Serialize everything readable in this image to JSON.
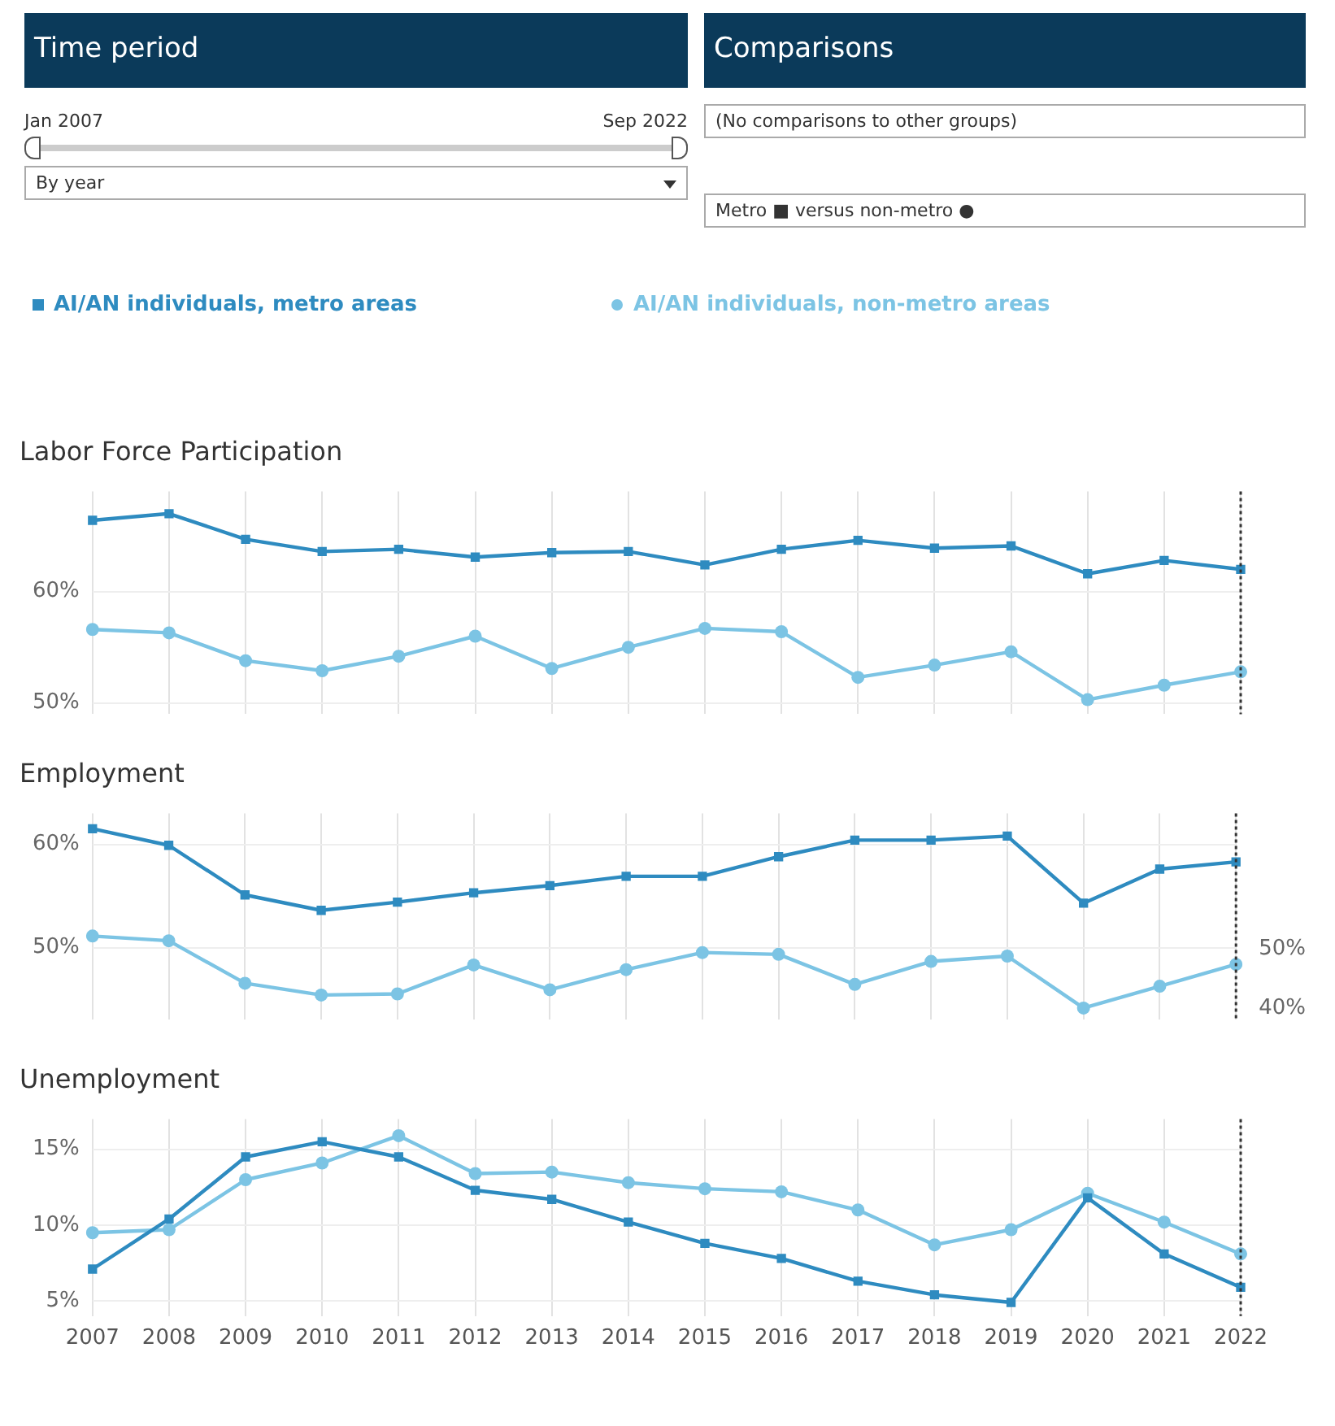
{
  "chart_data": [
    {
      "type": "other",
      "annotations": [
        "Time period",
        "Comparisons",
        "Jan 2007",
        "Sep 2022",
        "By year",
        "(No comparisons to other groups)",
        "Metro ■ versus non-metro ●"
      ]
    },
    {
      "type": "line",
      "title": "Labor Force Participation",
      "categories": [
        "2007",
        "2008",
        "2009",
        "2010",
        "2011",
        "2012",
        "2013",
        "2014",
        "2015",
        "2016",
        "2017",
        "2018",
        "2019",
        "2020",
        "2021",
        "2022"
      ],
      "series": [
        {
          "name": "AI/AN individuals, metro areas",
          "color": "#2e8bc0",
          "marker": "square",
          "values": [
            66.4,
            67.0,
            64.7,
            63.6,
            63.8,
            63.1,
            63.5,
            63.6,
            62.4,
            63.8,
            64.6,
            63.9,
            64.1,
            61.6,
            62.8,
            62.0
          ]
        },
        {
          "name": "AI/AN individuals, non-metro areas",
          "color": "#7cc4e4",
          "marker": "circle",
          "values": [
            56.6,
            56.3,
            53.8,
            52.9,
            54.2,
            56.0,
            53.1,
            55.0,
            56.7,
            56.4,
            52.3,
            53.4,
            54.6,
            50.3,
            51.6,
            52.8
          ]
        }
      ],
      "ylim": [
        49,
        69
      ],
      "yticks": [
        {
          "value": 50,
          "label": "50%"
        },
        {
          "value": 60,
          "label": "60%"
        }
      ],
      "grid": true,
      "legend": "top",
      "tick_labels": "y",
      "line_style": "solid",
      "ref_lines": [
        {
          "axis": "x",
          "value": "2022",
          "color": "#333333",
          "line_style": "dotted"
        }
      ]
    },
    {
      "type": "line",
      "title": "Employment",
      "categories": [
        "2007",
        "2008",
        "2009",
        "2010",
        "2011",
        "2012",
        "2013",
        "2014",
        "2015",
        "2016",
        "2017",
        "2018",
        "2019",
        "2020",
        "2021",
        "2022"
      ],
      "series": [
        {
          "color": "#2e8bc0",
          "marker": "square",
          "values": [
            61.5,
            59.9,
            55.1,
            53.6,
            54.4,
            55.3,
            56.0,
            56.9,
            56.9,
            58.8,
            60.4,
            60.4,
            60.8,
            54.3,
            57.6,
            58.3
          ]
        },
        {
          "color": "#7cc4e4",
          "marker": "circle",
          "axis": "y2",
          "values": [
            52.2,
            51.4,
            44.2,
            42.2,
            42.4,
            47.3,
            43.1,
            46.5,
            49.4,
            49.1,
            44.0,
            47.9,
            48.8,
            40.0,
            43.7,
            47.4
          ]
        }
      ],
      "ylim": [
        43,
        63
      ],
      "yticks": [
        {
          "value": 50,
          "label": "50%"
        },
        {
          "value": 60,
          "label": "60%"
        }
      ],
      "y2lim": [
        38,
        73
      ],
      "y2ticks": [
        {
          "value": 40,
          "label": "40%"
        },
        {
          "value": 50,
          "label": "50%"
        }
      ],
      "grid": true,
      "tick_labels": "y",
      "line_style": "solid",
      "ref_lines": [
        {
          "axis": "x",
          "value": "2022",
          "color": "#333333",
          "line_style": "dotted"
        }
      ]
    },
    {
      "type": "line",
      "title": "Unemployment",
      "categories": [
        "2007",
        "2008",
        "2009",
        "2010",
        "2011",
        "2012",
        "2013",
        "2014",
        "2015",
        "2016",
        "2017",
        "2018",
        "2019",
        "2020",
        "2021",
        "2022"
      ],
      "series": [
        {
          "color": "#2e8bc0",
          "marker": "square",
          "values": [
            7.1,
            10.4,
            14.5,
            15.5,
            14.5,
            12.3,
            11.7,
            10.2,
            8.8,
            7.8,
            6.3,
            5.4,
            4.9,
            11.8,
            8.1,
            5.9
          ]
        },
        {
          "color": "#7cc4e4",
          "marker": "circle",
          "values": [
            9.5,
            9.7,
            13.0,
            14.1,
            15.9,
            13.4,
            13.5,
            12.8,
            12.4,
            12.2,
            11.0,
            8.7,
            9.7,
            12.1,
            10.2,
            8.1
          ]
        }
      ],
      "ylim": [
        4,
        17
      ],
      "yticks": [
        {
          "value": 5,
          "label": "5%"
        },
        {
          "value": 10,
          "label": "10%"
        },
        {
          "value": 15,
          "label": "15%"
        }
      ],
      "grid": true,
      "line_style": "solid",
      "ref_lines": [
        {
          "axis": "x",
          "value": "2022",
          "color": "#333333",
          "line_style": "dotted"
        }
      ]
    }
  ]
}
